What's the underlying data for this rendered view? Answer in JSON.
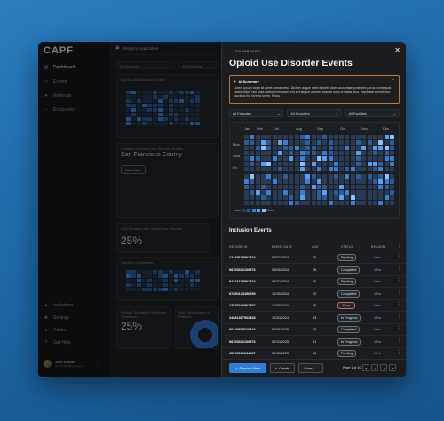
{
  "app": {
    "logo": "CAPF",
    "header_title": "Registry Application"
  },
  "sidebar": {
    "items": [
      {
        "label": "Dashboard",
        "icon": "grid-icon"
      },
      {
        "label": "Events",
        "icon": "calendar-icon"
      },
      {
        "label": "Referrals",
        "icon": "send-icon"
      },
      {
        "label": "Exclusions",
        "icon": "minus-icon"
      }
    ],
    "bottom_items": [
      {
        "label": "Invitations",
        "icon": "person-icon"
      },
      {
        "label": "Settings",
        "icon": "gear-icon"
      },
      {
        "label": "Admin",
        "icon": "person-icon"
      },
      {
        "label": "Get Help",
        "icon": "help-icon"
      }
    ],
    "user": {
      "name": "John Ehrhart",
      "email": "johnehrhart@registry.org"
    }
  },
  "background": {
    "filters": [
      "All Episodes",
      "All Episodes"
    ],
    "card1_title": "Opioid Use Disorder Events",
    "location_label": "Location of Opioid Use Disorder Events",
    "location_value": "San Francisco County",
    "view_map": "View Map",
    "stat1_label": "COVID cases with Opioid Use Disorder",
    "stat1_value": "25%",
    "card3_title": "Number of Referrals",
    "stat2_label": "Female Residents Receiving Treatment",
    "stat2_value": "25%",
    "card5_title": "Race Breakdown of Patients"
  },
  "panel": {
    "breadcrumb": "DASHBOARD",
    "title": "Opioid Use Disorder Events",
    "ai_summary": {
      "heading": "AI Summary",
      "body": "Lorem ipsum dolor sit amet consectetur. Dictum augue enim lobortis diam accumsan praesent purus consequat. Ullamcorper nisi nulla diablo commodo. Elit in tristique ultricies blandit nunc a mattis arcu. Imperdiet fermentum faucibus est viverra lorem. Risus."
    },
    "filters": [
      "All Episodes",
      "All Providers",
      "All Facilities"
    ],
    "heatmap": {
      "months": [
        "Jan",
        "Feb",
        "Jul",
        "Aug",
        "Sep",
        "Oct",
        "Nov",
        "Dec"
      ],
      "days": [
        "Mon",
        "Wed",
        "Fri"
      ],
      "legend_less": "Less",
      "legend_more": "More",
      "colors": [
        "#2a3b54",
        "#2f5c95",
        "#3b7fd1",
        "#5aa0ef",
        "#8cc2ff"
      ]
    },
    "table": {
      "title": "Inclusion Events",
      "headers": [
        "RECORD ID",
        "EVENT DATE",
        "AGE",
        "STATUS",
        "REASON"
      ],
      "rows": [
        {
          "id": "12345678901234",
          "date": "07/22/2024",
          "age": "45",
          "status": "Pending",
          "action": "View"
        },
        {
          "id": "98765432109876",
          "date": "08/05/2024",
          "age": "28",
          "status": "Completed",
          "action": "View"
        },
        {
          "id": "54321678901234",
          "date": "09/10/2024",
          "age": "50",
          "status": "Pending",
          "action": "View"
        },
        {
          "id": "67890123456789",
          "date": "10/15/2024",
          "age": "22",
          "status": "Completed",
          "action": "View"
        },
        {
          "id": "13579246801357",
          "date": "11/20/2024",
          "age": "26",
          "status": "Error",
          "action": "View"
        },
        {
          "id": "24681357902468",
          "date": "12/30/2024",
          "age": "33",
          "status": "In Progress",
          "action": "View"
        },
        {
          "id": "86420975318642",
          "date": "01/05/2025",
          "age": "29",
          "status": "Completed",
          "action": "View"
        },
        {
          "id": "98765432109876",
          "date": "02/10/2025",
          "age": "41",
          "status": "In Progress",
          "action": "View"
        },
        {
          "id": "45678901234567",
          "date": "03/15/2025",
          "age": "36",
          "status": "Pending",
          "action": "View"
        }
      ]
    },
    "footer": {
      "expand": "Expand View",
      "create": "Create",
      "more": "More",
      "page": "Page 1 of 10"
    }
  }
}
